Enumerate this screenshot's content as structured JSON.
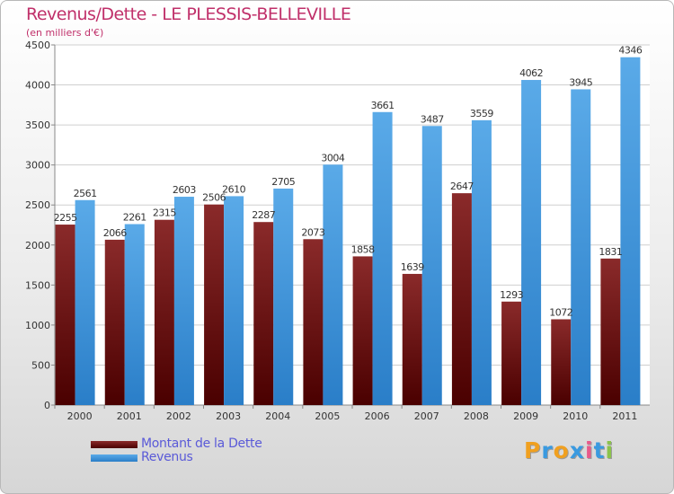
{
  "title": "Revenus/Dette - LE PLESSIS-BELLEVILLE",
  "subtitle": "(en milliers d'€)",
  "colors": {
    "debt": "#7a1c1c",
    "revenue": "#4a9ee4",
    "title": "#c0306a",
    "legend_text": "#5a5ad8"
  },
  "legend": {
    "items": [
      "Montant de la Dette",
      "Revenus"
    ]
  },
  "logo": {
    "text": "Proxiti"
  },
  "chart_data": {
    "type": "bar",
    "title": "Revenus/Dette - LE PLESSIS-BELLEVILLE",
    "subtitle": "(en milliers d'€)",
    "categories": [
      "2000",
      "2001",
      "2002",
      "2003",
      "2004",
      "2005",
      "2006",
      "2007",
      "2008",
      "2009",
      "2010",
      "2011"
    ],
    "series": [
      {
        "name": "Montant de la Dette",
        "values": [
          2255,
          2066,
          2315,
          2506,
          2287,
          2073,
          1858,
          1639,
          2647,
          1293,
          1072,
          1831
        ]
      },
      {
        "name": "Revenus",
        "values": [
          2561,
          2261,
          2603,
          2610,
          2705,
          3004,
          3661,
          3487,
          3559,
          4062,
          3945,
          4346
        ]
      }
    ],
    "ylim": [
      0,
      4500
    ],
    "yticks": [
      0,
      500,
      1000,
      1500,
      2000,
      2500,
      3000,
      3500,
      4000,
      4500
    ],
    "grid": true,
    "legend_position": "bottom-left"
  }
}
